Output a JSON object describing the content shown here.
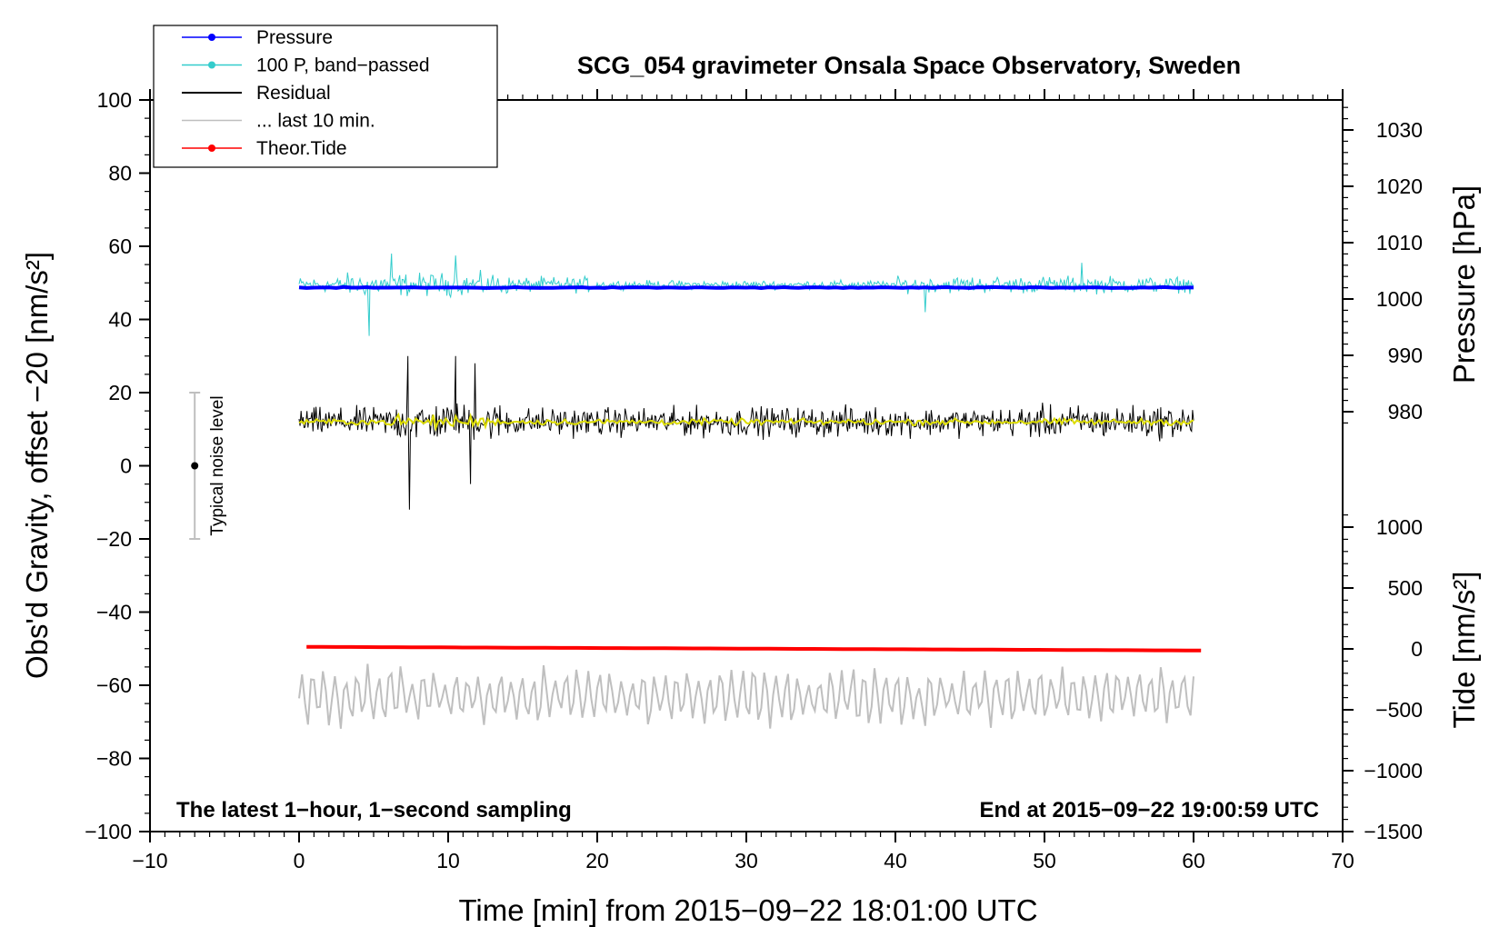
{
  "chart_data": {
    "type": "line",
    "title": "SCG_054 gravimeter Onsala Space Observatory, Sweden",
    "xlabel": "Time [min] from 2015−09−22 18:01:00 UTC",
    "ylabel_left": "Obs'd Gravity, offset −20 [nm/s²]",
    "ylabel_right_top": "Pressure [hPa]",
    "ylabel_right_bottom": "Tide [nm/s²]",
    "xlim": [
      -10,
      70
    ],
    "ylim_left": [
      -100,
      100
    ],
    "x_ticks": [
      "−10",
      "0",
      "10",
      "20",
      "30",
      "40",
      "50",
      "60",
      "70"
    ],
    "x_tick_values": [
      -10,
      0,
      10,
      20,
      30,
      40,
      50,
      60,
      70
    ],
    "y_left_ticks": [
      "100",
      "80",
      "60",
      "40",
      "20",
      "0",
      "−20",
      "−40",
      "−60",
      "−80",
      "−100"
    ],
    "y_left_tick_values": [
      100,
      80,
      60,
      40,
      20,
      0,
      -20,
      -40,
      -60,
      -80,
      -100
    ],
    "pressure_axis": {
      "ticks": [
        "1030",
        "1020",
        "1010",
        "1000",
        "990",
        "980"
      ],
      "values": [
        1030,
        1020,
        1010,
        1000,
        990,
        980
      ]
    },
    "tide_axis": {
      "ticks": [
        "1000",
        "500",
        "0",
        "−500",
        "−1000",
        "−1500"
      ],
      "values": [
        1000,
        500,
        0,
        -500,
        -1000,
        -1500
      ]
    },
    "notes": {
      "bottom_left": "The latest 1−hour, 1−second sampling",
      "bottom_right": "End at 2015−09−22 19:00:59 UTC"
    },
    "noise_bar": {
      "label": "Typical noise level",
      "x": -7,
      "center": 0,
      "low": -20,
      "high": 20
    },
    "legend": [
      {
        "label": "Pressure",
        "color": "#0000ff",
        "marker": true
      },
      {
        "label": "100 P, band−passed",
        "color": "#33cccc",
        "marker": true
      },
      {
        "label": "Residual",
        "color": "#000000",
        "marker": false
      },
      {
        "label": "... last 10 min.",
        "color": "#bfbfbf",
        "marker": false
      },
      {
        "label": "Theor.Tide",
        "color": "#ff0000",
        "marker": true
      }
    ],
    "series": [
      {
        "name": "Pressure",
        "color": "#0000ff",
        "x_range": [
          0,
          60
        ],
        "level_left_units": 48.7,
        "noise_amp": 0.2
      },
      {
        "name": "100 P, band−passed",
        "color": "#33cccc",
        "x_range": [
          0,
          60
        ],
        "level_left_units": 49.5,
        "noise_amp": 3,
        "spikes": [
          {
            "x": 4.7,
            "y": 35.5
          },
          {
            "x": 6.2,
            "y": 58
          },
          {
            "x": 10.5,
            "y": 57.5
          },
          {
            "x": 42.0,
            "y": 42
          },
          {
            "x": 52.5,
            "y": 55.5
          }
        ]
      },
      {
        "name": "Residual",
        "color": "#000000",
        "x_range": [
          0,
          60
        ],
        "level_left_units": 12,
        "noise_amp": 5.5,
        "spikes": [
          {
            "x": 7.3,
            "y": 30
          },
          {
            "x": 7.4,
            "y": -12
          },
          {
            "x": 10.5,
            "y": 30
          },
          {
            "x": 11.8,
            "y": 28
          },
          {
            "x": 11.5,
            "y": -5
          }
        ]
      },
      {
        "name": "Residual smoothed",
        "color": "#dddd00",
        "x_range": [
          0,
          60
        ],
        "level_left_units": 12,
        "noise_amp": 1.2
      },
      {
        "name": "... last 10 min.",
        "color": "#bfbfbf",
        "x_range": [
          0,
          60
        ],
        "level_left_units": -63,
        "noise_amp": 6,
        "min": -72.5,
        "max": -52
      },
      {
        "name": "Theor.Tide",
        "color": "#ff0000",
        "x_range": [
          0.5,
          60.5
        ],
        "start_left_units": -49.5,
        "end_left_units": -50.5
      }
    ]
  }
}
